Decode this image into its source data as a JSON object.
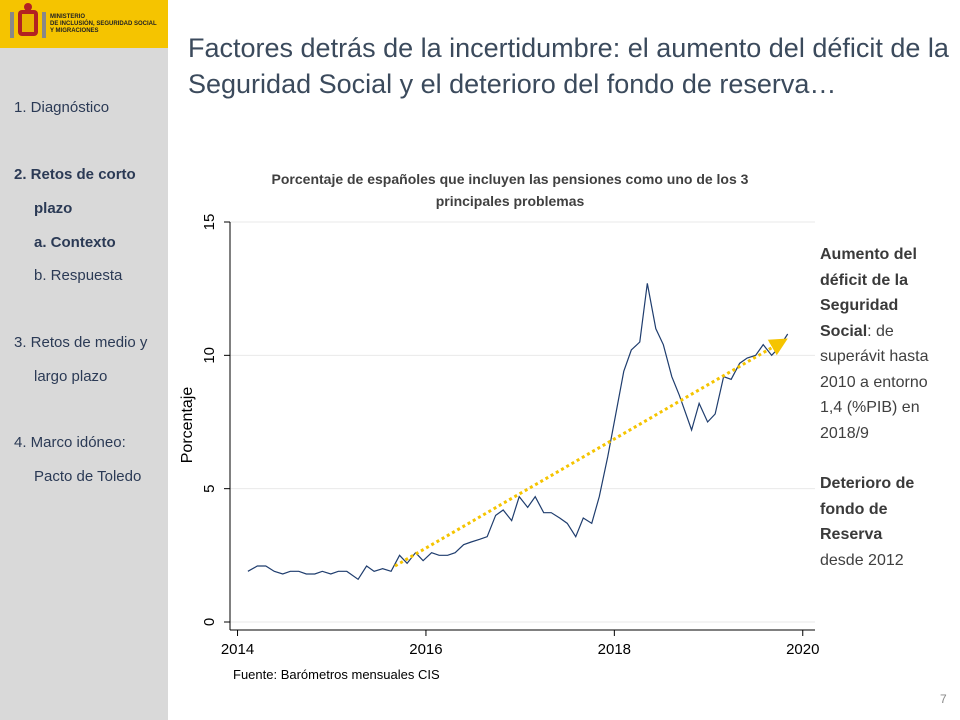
{
  "sidebar": {
    "logo": [
      "MINISTERIO",
      "DE INCLUSIÓN, SEGURIDAD SOCIAL",
      "Y MIGRACIONES"
    ],
    "menu": [
      {
        "text": "1. Diagnóstico",
        "bold": false,
        "sub": false
      },
      {
        "text": "2. Retos de corto plazo",
        "bold": true,
        "sub": false
      },
      {
        "text": "a. Contexto",
        "bold": true,
        "sub": true
      },
      {
        "text": "b. Respuesta",
        "bold": false,
        "sub": true
      },
      {
        "text": "3. Retos de medio y largo plazo",
        "bold": false,
        "sub": false
      },
      {
        "text": "4. Marco idóneo: Pacto de Toledo",
        "bold": false,
        "sub": false
      }
    ]
  },
  "slide": {
    "title": "Factores detrás de la incertidumbre: el aumento del déficit de la Seguridad Social y el deterioro del fondo de reserva…",
    "page_number": "7"
  },
  "notes": [
    {
      "text": "Aumento del déficit de la Seguridad Social",
      "bold": true
    },
    {
      "text": ": de superávit hasta 2010 a entorno 1,4 (%PIB) en 2018/9",
      "bold": false
    },
    {
      "text": "Deterioro de fondo de Reserva",
      "bold": true,
      "new_paragraph": true
    },
    {
      "text": "desde 2012",
      "bold": false
    }
  ],
  "chart_data": {
    "type": "line",
    "title": "Porcentaje de españoles que incluyen las pensiones como uno de los 3 principales problemas",
    "y_label": "Porcentaje",
    "source": "Fuente: Barómetros mensuales CIS",
    "color": "#1f3d6e",
    "trend_color": "#f5c400",
    "grid": true,
    "xlim": [
      2013.92,
      2020.13
    ],
    "xticks": [
      2014,
      2016,
      2018,
      2020
    ],
    "ylim": [
      -0.3,
      15
    ],
    "yticks": [
      0,
      5,
      10,
      15
    ],
    "x": [
      2014.11,
      2014.21,
      2014.3,
      2014.39,
      2014.48,
      2014.56,
      2014.65,
      2014.73,
      2014.82,
      2014.9,
      2014.99,
      2015.07,
      2015.16,
      2015.28,
      2015.37,
      2015.45,
      2015.54,
      2015.63,
      2015.72,
      2015.8,
      2015.89,
      2015.97,
      2016.06,
      2016.14,
      2016.23,
      2016.31,
      2016.4,
      2016.48,
      2016.57,
      2016.65,
      2016.74,
      2016.82,
      2016.91,
      2016.99,
      2017.08,
      2017.16,
      2017.25,
      2017.33,
      2017.42,
      2017.5,
      2017.59,
      2017.67,
      2017.76,
      2017.84,
      2017.93,
      2018.01,
      2018.1,
      2018.18,
      2018.27,
      2018.35,
      2018.44,
      2018.52,
      2018.61,
      2018.69,
      2018.82,
      2018.9,
      2018.99,
      2019.07,
      2019.16,
      2019.24,
      2019.33,
      2019.41,
      2019.5,
      2019.58,
      2019.67,
      2019.75,
      2019.84
    ],
    "values": [
      1.9,
      2.1,
      2.1,
      1.9,
      1.8,
      1.9,
      1.9,
      1.8,
      1.8,
      1.9,
      1.8,
      1.9,
      1.9,
      1.6,
      2.1,
      1.9,
      2.0,
      1.9,
      2.5,
      2.2,
      2.6,
      2.3,
      2.6,
      2.5,
      2.5,
      2.6,
      2.9,
      3.0,
      3.1,
      3.2,
      4.0,
      4.2,
      3.8,
      4.7,
      4.3,
      4.7,
      4.1,
      4.1,
      3.9,
      3.7,
      3.2,
      3.9,
      3.7,
      4.7,
      6.2,
      7.7,
      9.4,
      10.2,
      10.5,
      12.7,
      11.0,
      10.4,
      9.2,
      8.5,
      7.2,
      8.2,
      7.5,
      7.8,
      9.2,
      9.1,
      9.7,
      9.9,
      10.0,
      10.4,
      10.0,
      10.3,
      10.8
    ]
  }
}
